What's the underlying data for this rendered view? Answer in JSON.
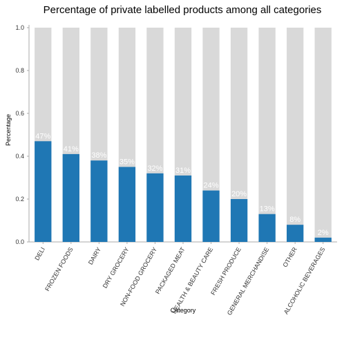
{
  "chart_data": {
    "type": "bar",
    "title": "Percentage of private labelled products among all categories",
    "xlabel": "Category",
    "ylabel": "Percentage",
    "ylim": [
      0,
      1.0
    ],
    "yticks": [
      "0.0",
      "0.2",
      "0.4",
      "0.6",
      "0.8",
      "1.0"
    ],
    "grid": false,
    "categories": [
      "DELI",
      "FROZEN FOODS",
      "DAIRY",
      "DRY GROCERY",
      "NON-FOOD GROCERY",
      "PACKAGED MEAT",
      "HEALTH & BEAUTY CARE",
      "FRESH PRODUCE",
      "GENERAL MERCHANDISE",
      "OTHER",
      "ALCOHOLIC BEVERAGES"
    ],
    "values": [
      0.47,
      0.41,
      0.38,
      0.35,
      0.32,
      0.31,
      0.24,
      0.2,
      0.13,
      0.08,
      0.02
    ],
    "background_values": [
      1,
      1,
      1,
      1,
      1,
      1,
      1,
      1,
      1,
      1,
      1
    ],
    "data_labels": [
      "47%",
      "41%",
      "38%",
      "35%",
      "32%",
      "31%",
      "24%",
      "20%",
      "13%",
      "8%",
      "2%"
    ],
    "colors": {
      "bar": "#1f77b4",
      "background_bar": "#d9d9d9",
      "axis": "#aaaaaa",
      "text": "#333333",
      "label": "#ffffff"
    }
  }
}
